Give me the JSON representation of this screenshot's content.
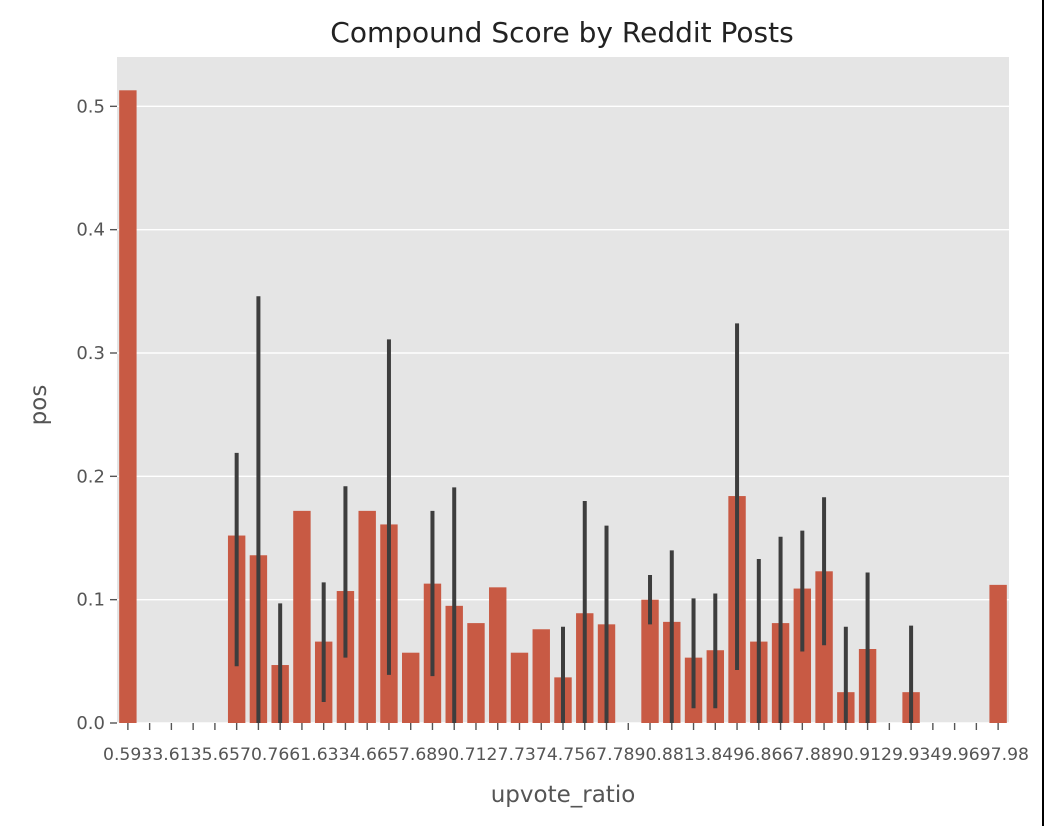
{
  "chart_data": {
    "type": "bar",
    "title": "Compound Score by Reddit Posts",
    "xlabel": "upvote_ratio",
    "ylabel": "pos",
    "ylim": [
      0,
      0.54
    ],
    "yticks": [
      0.0,
      0.1,
      0.2,
      0.3,
      0.4,
      0.5
    ],
    "ytick_labels": [
      "0.0",
      "0.1",
      "0.2",
      "0.3",
      "0.4",
      "0.5"
    ],
    "grid": true,
    "bar_color": "#c85a44",
    "errorbar_color": "#3d3d3d",
    "background_color": "#e5e5e5",
    "categories": [
      "0.59",
      "0.6",
      "0.61",
      "0.62",
      "0.63",
      "0.65",
      "0.66",
      "0.67",
      "0.68",
      "0.69",
      "0.7",
      "0.71",
      "0.72",
      "0.73",
      "0.74",
      "0.75",
      "0.76",
      "0.77",
      "0.78",
      "0.79",
      "0.8",
      "0.81",
      "0.82",
      "0.83",
      "0.84",
      "0.85",
      "0.86",
      "0.87",
      "0.88",
      "0.89",
      "0.9",
      "0.91",
      "0.92",
      "0.93",
      "0.94",
      "0.95",
      "0.96",
      "0.97",
      "0.98",
      "0.99",
      "1.0"
    ],
    "x_tick_text": "0.5933.6135.6570.7661.6334.6657.6890.7127.7374.7567.7890.8813.8496.8667.8890.9129.9349.9697.98",
    "values": [
      0.513,
      0,
      0,
      0,
      0,
      0.152,
      0.136,
      0.047,
      0.172,
      0.066,
      0.107,
      0.172,
      0.161,
      0.057,
      0.113,
      0.095,
      0.081,
      0.11,
      0.057,
      0.076,
      0.037,
      0.089,
      0.08,
      0,
      0.1,
      0.082,
      0.053,
      0.059,
      0.184,
      0.066,
      0.081,
      0.109,
      0.123,
      0.025,
      0.06,
      0,
      0.025,
      0,
      0,
      0,
      0.112
    ],
    "errors": [
      null,
      null,
      null,
      null,
      null,
      [
        0.046,
        0.219
      ],
      [
        0.0,
        0.346
      ],
      [
        0.0,
        0.097
      ],
      null,
      [
        0.017,
        0.114
      ],
      [
        0.053,
        0.192
      ],
      null,
      [
        0.039,
        0.311
      ],
      null,
      [
        0.038,
        0.172
      ],
      [
        0.0,
        0.191
      ],
      null,
      null,
      null,
      null,
      [
        0.0,
        0.078
      ],
      [
        0.0,
        0.18
      ],
      [
        0.0,
        0.16
      ],
      null,
      [
        0.08,
        0.12
      ],
      [
        0.0,
        0.14
      ],
      [
        0.012,
        0.101
      ],
      [
        0.012,
        0.105
      ],
      [
        0.043,
        0.324
      ],
      [
        0.0,
        0.133
      ],
      [
        0.0,
        0.151
      ],
      [
        0.058,
        0.156
      ],
      [
        0.063,
        0.183
      ],
      [
        0.0,
        0.078
      ],
      [
        0.0,
        0.122
      ],
      null,
      [
        0.0,
        0.079
      ],
      null,
      null,
      null,
      null
    ]
  }
}
